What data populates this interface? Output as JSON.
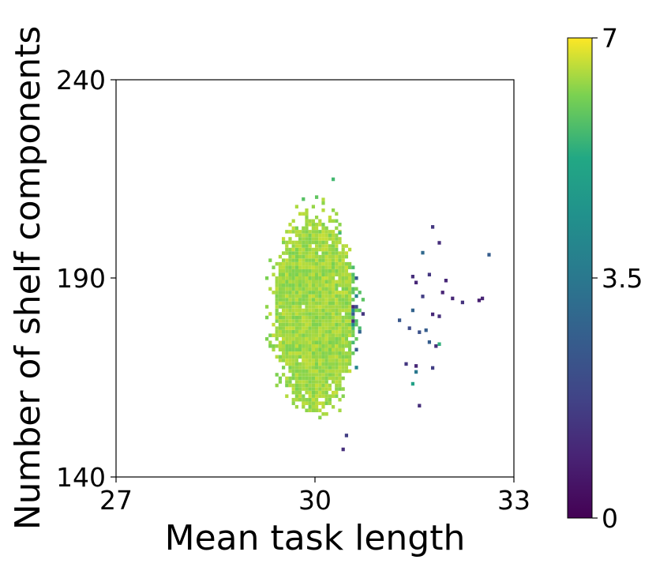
{
  "chart_data": {
    "type": "heatmap",
    "title": "",
    "xlabel": "Mean task length",
    "ylabel": "Number of shelf components",
    "xlim": [
      27,
      33
    ],
    "ylim": [
      140,
      240
    ],
    "xticks": [
      "27",
      "30",
      "33"
    ],
    "yticks": [
      "140",
      "190",
      "240"
    ],
    "grid": false,
    "colorbar": {
      "colormap": "viridis",
      "range": [
        0,
        7
      ],
      "ticks": [
        "0",
        "3.5",
        "7"
      ]
    },
    "description_of_distribution": {
      "core_x_range": [
        29.4,
        30.6
      ],
      "core_y_range": [
        157,
        203
      ],
      "core_value": 6.5,
      "tail_x_range": [
        30.6,
        32.6
      ],
      "tail_values_range": [
        1.0,
        5.5
      ]
    },
    "sparse_points": [
      [
        31.75,
        202.5,
        1.4
      ],
      [
        31.6,
        196.0,
        3.0
      ],
      [
        31.85,
        198.5,
        1.2
      ],
      [
        32.6,
        195.5,
        2.6
      ],
      [
        31.5,
        188.5,
        1.0
      ],
      [
        31.45,
        190.0,
        1.2
      ],
      [
        31.7,
        190.5,
        1.4
      ],
      [
        31.95,
        189.0,
        1.0
      ],
      [
        31.9,
        186.0,
        0.9
      ],
      [
        31.6,
        185.0,
        1.6
      ],
      [
        32.05,
        184.5,
        1.0
      ],
      [
        32.5,
        184.5,
        0.9
      ],
      [
        32.45,
        184.0,
        0.8
      ],
      [
        32.2,
        183.5,
        1.3
      ],
      [
        31.45,
        181.5,
        2.8
      ],
      [
        31.75,
        180.5,
        1.0
      ],
      [
        31.85,
        180.0,
        1.2
      ],
      [
        31.25,
        179.0,
        2.4
      ],
      [
        31.4,
        177.0,
        2.0
      ],
      [
        31.65,
        176.5,
        2.6
      ],
      [
        31.55,
        176.0,
        2.2
      ],
      [
        31.7,
        173.5,
        2.6
      ],
      [
        31.8,
        172.5,
        1.2
      ],
      [
        31.85,
        173.0,
        5.4
      ],
      [
        31.35,
        168.0,
        1.4
      ],
      [
        31.5,
        167.5,
        1.0
      ],
      [
        31.75,
        167.0,
        1.6
      ],
      [
        31.5,
        166.0,
        3.5
      ],
      [
        31.45,
        163.0,
        5.0
      ],
      [
        31.55,
        157.5,
        1.2
      ],
      [
        30.45,
        150.0,
        1.6
      ],
      [
        30.4,
        146.5,
        1.2
      ],
      [
        30.25,
        214.5,
        5.6
      ],
      [
        30.0,
        210.0,
        5.9
      ],
      [
        29.8,
        209.5,
        5.8
      ],
      [
        30.35,
        201.0,
        5.6
      ]
    ]
  }
}
